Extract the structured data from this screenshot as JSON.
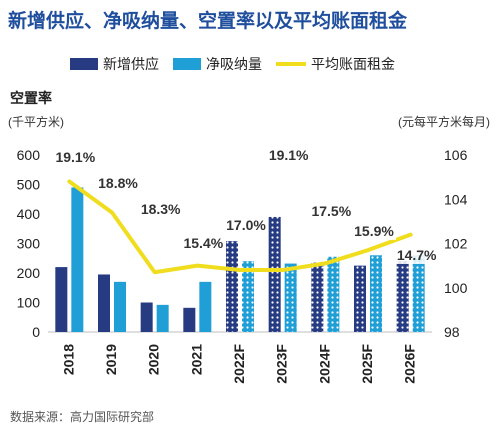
{
  "title": "新增供应、净吸纳量、空置率以及平均账面租金",
  "legend": {
    "supply": "新增供应",
    "absorption": "净吸纳量",
    "rent": "平均账面租金"
  },
  "left_axis_title": "空置率",
  "left_unit": "(千平方米)",
  "right_unit": "(元每平方米每月)",
  "source": "数据来源：高力国际研究部",
  "colors": {
    "supply": "#263b82",
    "absorption": "#1f9fd6",
    "rent": "#f0dd1e",
    "label_bg": "#ffffff"
  },
  "chart_data": {
    "type": "bar",
    "categories": [
      "2018",
      "2019",
      "2020",
      "2021",
      "2022F",
      "2023F",
      "2024F",
      "2025F",
      "2026F"
    ],
    "forecast_from_index": 4,
    "series": [
      {
        "name": "新增供应",
        "kind": "bar",
        "axis": "left",
        "values": [
          220,
          195,
          100,
          82,
          308,
          390,
          235,
          225,
          240
        ]
      },
      {
        "name": "净吸纳量",
        "kind": "bar",
        "axis": "left",
        "values": [
          490,
          170,
          92,
          170,
          240,
          232,
          255,
          260,
          260
        ]
      },
      {
        "name": "平均账面租金",
        "kind": "line",
        "axis": "right",
        "values": [
          104.8,
          103.4,
          100.7,
          101.0,
          100.8,
          100.8,
          101.1,
          101.7,
          102.4
        ]
      }
    ],
    "vacancy_labels": [
      "19.1%",
      "18.8%",
      "18.3%",
      "15.4%",
      "17.0%",
      "19.1%",
      "17.5%",
      "15.9%",
      "14.7%"
    ],
    "left_ticks": [
      "0",
      "100",
      "200",
      "300",
      "400",
      "500",
      "600"
    ],
    "right_ticks": [
      "98",
      "100",
      "102",
      "104",
      "106"
    ],
    "ylim_left": [
      0,
      600
    ],
    "ylim_right": [
      98,
      106
    ]
  }
}
